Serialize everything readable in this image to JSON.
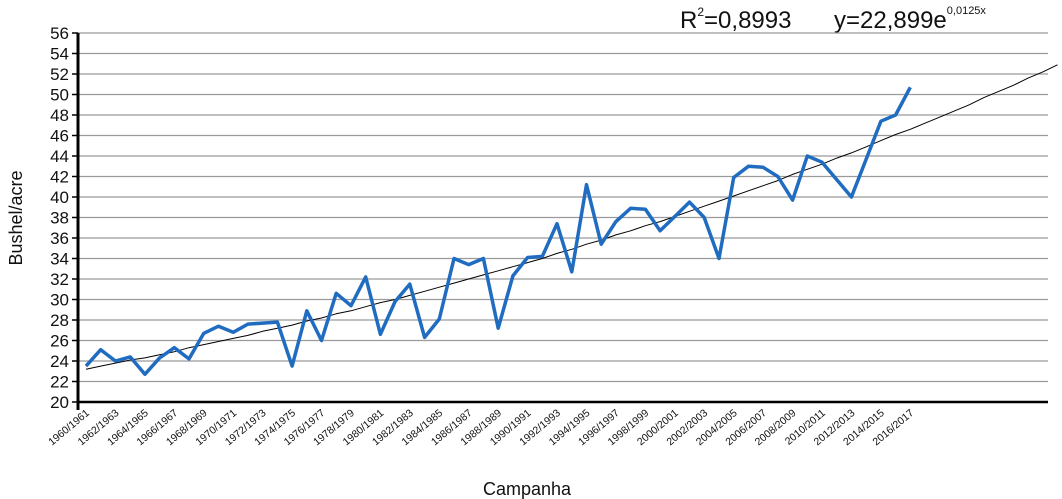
{
  "chart_data": {
    "type": "line",
    "y_label": "Bushel/acre",
    "x_label": "Campanha",
    "annotations": [
      {
        "base": "R",
        "sup": "2",
        "rest": "=0,8993"
      },
      {
        "base": "y=22,899e",
        "sup": "0,0125x"
      }
    ],
    "categories": [
      "1960/1961",
      null,
      "1962/1963",
      null,
      "1964/1965",
      null,
      "1966/1967",
      null,
      "1968/1969",
      null,
      "1970/1971",
      null,
      "1972/1973",
      null,
      "1974/1975",
      null,
      "1976/1977",
      null,
      "1978/1979",
      null,
      "1980/1981",
      null,
      "1982/1983",
      null,
      "1984/1985",
      null,
      "1986/1987",
      null,
      "1988/1989",
      null,
      "1990/1991",
      null,
      "1992/1993",
      null,
      "1994/1995",
      null,
      "1996/1997",
      null,
      "1998/1999",
      null,
      "2000/2001",
      null,
      "2002/2003",
      null,
      "2004/2005",
      null,
      "2006/2007",
      null,
      "2008/2009",
      null,
      "2010/2011",
      null,
      "2012/2013",
      null,
      "2014/2015",
      null,
      "2016/2017",
      null,
      null,
      null,
      null,
      null,
      null,
      null,
      null,
      null,
      null
    ],
    "series": [
      {
        "color": "#1f6cc1",
        "values": [
          23.5,
          25.1,
          24.0,
          24.4,
          22.7,
          24.3,
          25.3,
          24.2,
          26.7,
          27.4,
          26.8,
          27.6,
          27.7,
          27.8,
          23.5,
          28.9,
          26.0,
          30.6,
          29.4,
          32.2,
          26.6,
          29.8,
          31.5,
          26.3,
          28.1,
          34.0,
          33.4,
          34.0,
          27.2,
          32.3,
          34.1,
          34.2,
          37.4,
          32.7,
          41.2,
          35.4,
          37.6,
          38.9,
          38.8,
          36.7,
          38.1,
          39.5,
          38.0,
          34.0,
          41.9,
          43.0,
          42.9,
          42.0,
          39.7,
          44.0,
          43.4,
          41.7,
          40.0,
          43.7,
          47.4,
          48.0,
          50.7,
          null,
          null,
          null,
          null,
          null,
          null,
          null,
          null,
          null,
          null
        ]
      },
      {
        "color": "#000000",
        "values": [
          23.2,
          23.5,
          23.8,
          24.1,
          24.3,
          24.6,
          24.9,
          25.3,
          25.6,
          25.9,
          26.2,
          26.5,
          26.9,
          27.2,
          27.5,
          27.9,
          28.2,
          28.6,
          28.9,
          29.3,
          29.7,
          30.0,
          30.4,
          30.8,
          31.2,
          31.6,
          32.0,
          32.4,
          32.8,
          33.2,
          33.6,
          34.0,
          34.5,
          34.9,
          35.4,
          35.8,
          36.3,
          36.7,
          37.2,
          37.6,
          38.1,
          38.6,
          39.1,
          39.6,
          40.1,
          40.6,
          41.1,
          41.6,
          42.2,
          42.7,
          43.2,
          43.8,
          44.3,
          44.9,
          45.5,
          46.1,
          46.6,
          47.2,
          47.8,
          48.4,
          49.0,
          49.7,
          50.3,
          50.9,
          51.6,
          52.2,
          52.9
        ]
      }
    ],
    "ylim": [
      20,
      56
    ],
    "yticks": [
      20,
      22,
      24,
      26,
      28,
      30,
      32,
      34,
      36,
      38,
      40,
      42,
      44,
      46,
      48,
      50,
      52,
      54,
      56
    ],
    "grid": true
  }
}
